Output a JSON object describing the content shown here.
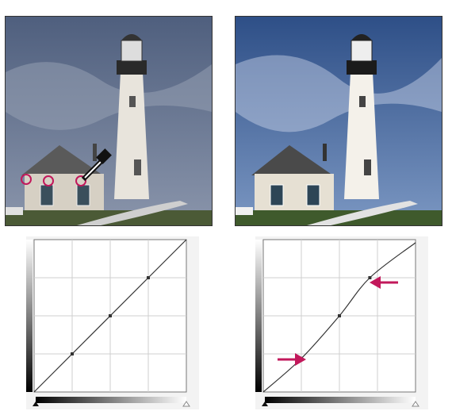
{
  "figure": {
    "panels": [
      {
        "id": "before",
        "photo": {
          "subject": "lighthouse-scene",
          "tone": "dull",
          "markers": [
            "sample-point",
            "sample-point",
            "sample-point"
          ],
          "tool_icon": "eyedropper-icon"
        },
        "curve": {
          "shape": "linear",
          "points": [
            [
              0,
              0
            ],
            [
              0.25,
              0.25
            ],
            [
              0.5,
              0.5
            ],
            [
              0.75,
              0.75
            ],
            [
              1,
              1
            ]
          ],
          "handles": [
            0.25,
            0.5,
            0.75
          ]
        }
      },
      {
        "id": "after",
        "photo": {
          "subject": "lighthouse-scene",
          "tone": "contrast-boosted",
          "markers": []
        },
        "curve": {
          "shape": "s-curve",
          "points": [
            [
              0,
              0
            ],
            [
              0.25,
              0.22
            ],
            [
              0.5,
              0.5
            ],
            [
              0.7,
              0.75
            ],
            [
              1,
              0.98
            ]
          ],
          "handles": [
            0.25,
            0.5,
            0.7
          ],
          "arrows": [
            "arrow-right-icon",
            "arrow-left-icon"
          ]
        }
      }
    ],
    "colors": {
      "accent": "#c2185b",
      "sky_before": "#6f7f9c",
      "sky_after": "#3f6aa8",
      "grass": "#4b5a36"
    }
  }
}
